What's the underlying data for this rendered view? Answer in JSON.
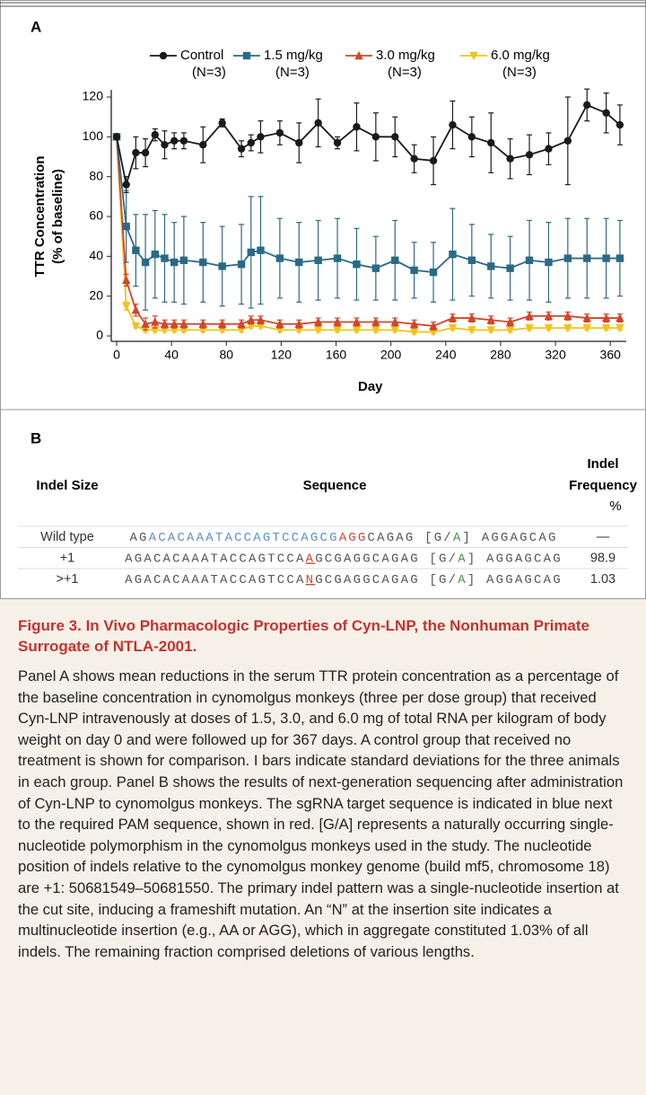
{
  "chart_data": {
    "type": "line",
    "panel": "A",
    "ylabel": [
      "TTR Concentration",
      "(% of baseline)"
    ],
    "xlabel": "Day",
    "x": [
      0,
      7,
      14,
      21,
      28,
      35,
      42,
      49,
      63,
      77,
      91,
      98,
      105,
      119,
      133,
      147,
      161,
      175,
      189,
      203,
      217,
      231,
      245,
      259,
      273,
      287,
      301,
      315,
      329,
      343,
      357,
      367
    ],
    "series": [
      {
        "name": "Control",
        "n": "(N=3)",
        "color": "#1a1a1a",
        "marker": "circle",
        "values": [
          100,
          76,
          92,
          92,
          101,
          96,
          98,
          98,
          96,
          107,
          94,
          97,
          100,
          102,
          97,
          107,
          97,
          105,
          100,
          100,
          89,
          88,
          106,
          100,
          97,
          89,
          91,
          94,
          98,
          116,
          112,
          106
        ],
        "errors": [
          0,
          4,
          8,
          7,
          3,
          7,
          4,
          4,
          9,
          2,
          4,
          4,
          8,
          6,
          10,
          12,
          3,
          12,
          12,
          10,
          7,
          12,
          12,
          10,
          15,
          10,
          10,
          8,
          22,
          8,
          10,
          10
        ]
      },
      {
        "name": "1.5 mg/kg",
        "n": "(N=3)",
        "color": "#2a6a86",
        "marker": "square",
        "values": [
          100,
          55,
          43,
          37,
          41,
          39,
          37,
          38,
          37,
          35,
          36,
          42,
          43,
          39,
          37,
          38,
          39,
          36,
          34,
          38,
          33,
          32,
          41,
          38,
          35,
          34,
          38,
          37,
          39,
          39,
          39,
          39
        ],
        "errors": [
          0,
          18,
          18,
          24,
          22,
          22,
          20,
          22,
          20,
          20,
          20,
          28,
          27,
          20,
          20,
          20,
          20,
          18,
          16,
          20,
          14,
          15,
          23,
          18,
          16,
          16,
          20,
          20,
          20,
          20,
          20,
          19
        ]
      },
      {
        "name": "3.0 mg/kg",
        "n": "(N=3)",
        "color": "#d2462a",
        "marker": "triangle-up",
        "values": [
          100,
          28,
          13,
          6,
          7,
          6,
          6,
          6,
          6,
          6,
          6,
          8,
          8,
          6,
          6,
          7,
          7,
          7,
          7,
          7,
          6,
          5,
          9,
          9,
          8,
          7,
          10,
          10,
          10,
          9,
          9,
          9
        ],
        "errors": [
          0,
          3,
          3,
          3,
          3,
          2,
          2,
          2,
          2,
          2,
          2,
          2,
          2,
          2,
          2,
          2,
          2,
          2,
          2,
          2,
          2,
          2,
          2,
          2,
          2,
          2,
          2,
          2,
          2,
          2,
          2,
          2
        ]
      },
      {
        "name": "6.0 mg/kg",
        "n": "(N=3)",
        "color": "#f0c419",
        "marker": "triangle-down",
        "values": [
          100,
          15,
          5,
          3,
          3,
          3,
          3,
          3,
          3,
          3,
          3,
          5,
          5,
          3,
          3,
          3,
          3,
          3,
          3,
          3,
          2,
          2,
          4,
          3,
          3,
          3,
          4,
          4,
          4,
          4,
          4,
          4
        ],
        "errors": [
          0,
          2,
          1,
          1,
          1,
          1,
          1,
          1,
          1,
          1,
          1,
          1,
          1,
          1,
          1,
          1,
          1,
          1,
          1,
          1,
          1,
          1,
          1,
          1,
          1,
          1,
          1,
          1,
          1,
          1,
          1,
          1
        ]
      }
    ],
    "xlim": [
      0,
      370
    ],
    "ylim": [
      0,
      120
    ],
    "xticks": [
      0,
      40,
      80,
      120,
      160,
      200,
      240,
      280,
      320,
      360
    ],
    "yticks": [
      0,
      20,
      40,
      60,
      80,
      100,
      120
    ]
  },
  "panel_b": {
    "label": "B",
    "header": {
      "size": "Indel Size",
      "sequence": "Sequence",
      "frequency": [
        "Indel",
        "Frequency"
      ],
      "unit": "%"
    },
    "rows": [
      {
        "size": "Wild type",
        "frequency": "—",
        "segments": [
          {
            "text": "AG",
            "style": "plain"
          },
          {
            "text": "ACACAAATACCAGTCCAGCG",
            "style": "blue"
          },
          {
            "text": "AGG",
            "style": "red"
          },
          {
            "text": "CAGAG [G/",
            "style": "plain"
          },
          {
            "text": "A",
            "style": "green"
          },
          {
            "text": "] AGGAGCAG",
            "style": "plain"
          }
        ]
      },
      {
        "size": "+1",
        "frequency": "98.9",
        "segments": [
          {
            "text": "AGACACAAATACCAGTCCA",
            "style": "plain"
          },
          {
            "text": "A",
            "style": "red-underline"
          },
          {
            "text": "GCGAGGCAGAG [G/",
            "style": "plain"
          },
          {
            "text": "A",
            "style": "green"
          },
          {
            "text": "] AGGAGCAG",
            "style": "plain"
          }
        ]
      },
      {
        "size": ">+1",
        "frequency": "1.03",
        "segments": [
          {
            "text": "AGACACAAATACCAGTCCA",
            "style": "plain"
          },
          {
            "text": "N",
            "style": "red-underline"
          },
          {
            "text": "GCGAGGCAGAG [G/",
            "style": "plain"
          },
          {
            "text": "A",
            "style": "green"
          },
          {
            "text": "] AGGAGCAG",
            "style": "plain"
          }
        ]
      }
    ]
  },
  "caption": {
    "title": "Figure 3. In Vivo Pharmacologic Properties of Cyn-LNP, the Nonhuman Primate Surrogate of NTLA-2001.",
    "body": "Panel A shows mean reductions in the serum TTR protein concentration as a percentage of the baseline concentration in cynomolgus monkeys (three per dose group) that received Cyn-LNP intravenously at doses of 1.5, 3.0, and 6.0 mg of total RNA per kilogram of body weight on day 0 and were followed up for 367 days. A control group that received no treatment is shown for comparison. I bars indicate standard deviations for the three animals in each group. Panel B shows the results of next-generation sequencing after administration of Cyn-LNP to cynomolgus monkeys. The sgRNA target sequence is indicated in blue next to the required PAM sequence, shown in red. [G/A] represents a naturally occurring single-nucleotide polymorphism in the cynomolgus monkeys used in the study. The nucleotide position of indels relative to the cynomolgus monkey genome (build mf5, chromosome 18) are +1: 50681549–50681550. The primary indel pattern was a single-nucleotide insertion at the cut site, inducing a frameshift mutation. An “N” at the insertion site indicates a multinucleotide insertion (e.g., AA or AGG), which in aggregate constituted 1.03% of all indels. The remaining fraction comprised deletions of various lengths."
  }
}
